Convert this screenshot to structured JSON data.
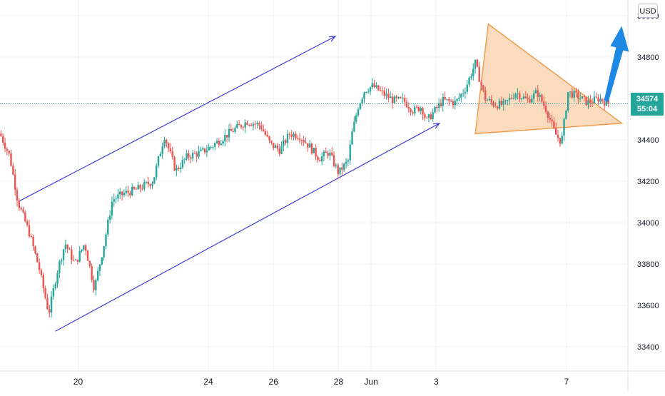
{
  "header": {
    "currency_label": "USD"
  },
  "current_price": {
    "price": "34574",
    "countdown": "55:04"
  },
  "colors": {
    "up": "#26a69a",
    "down": "#ef5350",
    "channel": "#3f3fd9",
    "triangle_fill": "#f8cfa7",
    "triangle_stroke": "#ef9f4f",
    "arrow": "#1e88e5",
    "price_line": "#26a69a",
    "grid": "#f0f3fa",
    "axis_text": "#131722"
  },
  "chart_data": {
    "type": "candlestick",
    "title": "",
    "xlabel": "",
    "ylabel": "",
    "ylim": [
      33360,
      35000
    ],
    "y_ticks": [
      33400,
      33600,
      33800,
      34000,
      34200,
      34400,
      34600,
      34800,
      35000
    ],
    "y_tick_labels": [
      "33400",
      "33600",
      "33800",
      "34000",
      "34200",
      "34400",
      "34600",
      "34800",
      "35000"
    ],
    "x_ticks": [
      {
        "label": "20",
        "x": 2.4
      },
      {
        "label": "24",
        "x": 6.4
      },
      {
        "label": "26",
        "x": 8.4
      },
      {
        "label": "28",
        "x": 10.4
      },
      {
        "label": "Jun",
        "x": 11.4
      },
      {
        "label": "3",
        "x": 13.4
      },
      {
        "label": "7",
        "x": 17.4
      }
    ],
    "xlim": [
      0,
      19
    ],
    "price_path": [
      [
        0.0,
        34430
      ],
      [
        0.3,
        34320
      ],
      [
        0.55,
        34100
      ],
      [
        0.9,
        33950
      ],
      [
        1.2,
        33780
      ],
      [
        1.5,
        33560
      ],
      [
        1.75,
        33760
      ],
      [
        2.0,
        33900
      ],
      [
        2.3,
        33800
      ],
      [
        2.6,
        33900
      ],
      [
        2.9,
        33680
      ],
      [
        3.2,
        33900
      ],
      [
        3.45,
        34110
      ],
      [
        3.8,
        34140
      ],
      [
        4.2,
        34160
      ],
      [
        4.7,
        34200
      ],
      [
        5.05,
        34420
      ],
      [
        5.4,
        34250
      ],
      [
        5.75,
        34320
      ],
      [
        6.2,
        34340
      ],
      [
        6.6,
        34380
      ],
      [
        7.1,
        34440
      ],
      [
        7.6,
        34490
      ],
      [
        8.0,
        34470
      ],
      [
        8.3,
        34380
      ],
      [
        8.6,
        34350
      ],
      [
        8.9,
        34430
      ],
      [
        9.2,
        34420
      ],
      [
        9.5,
        34370
      ],
      [
        9.8,
        34310
      ],
      [
        10.1,
        34340
      ],
      [
        10.4,
        34240
      ],
      [
        10.7,
        34300
      ],
      [
        10.8,
        34420
      ],
      [
        11.0,
        34560
      ],
      [
        11.2,
        34640
      ],
      [
        11.45,
        34660
      ],
      [
        11.8,
        34620
      ],
      [
        12.1,
        34590
      ],
      [
        12.4,
        34590
      ],
      [
        12.7,
        34540
      ],
      [
        12.95,
        34560
      ],
      [
        13.1,
        34490
      ],
      [
        13.35,
        34540
      ],
      [
        13.6,
        34590
      ],
      [
        14.0,
        34580
      ],
      [
        14.3,
        34650
      ],
      [
        14.6,
        34770
      ],
      [
        14.9,
        34600
      ],
      [
        15.2,
        34570
      ],
      [
        15.5,
        34570
      ],
      [
        15.85,
        34630
      ],
      [
        16.2,
        34590
      ],
      [
        16.5,
        34630
      ],
      [
        16.8,
        34540
      ],
      [
        17.05,
        34430
      ],
      [
        17.25,
        34390
      ],
      [
        17.45,
        34630
      ],
      [
        17.75,
        34610
      ],
      [
        18.05,
        34580
      ],
      [
        18.4,
        34600
      ],
      [
        18.7,
        34574
      ]
    ],
    "annotations": {
      "channel_lower": [
        [
          1.7,
          33475
        ],
        [
          13.5,
          34480
        ]
      ],
      "channel_upper": [
        [
          0.6,
          34105
        ],
        [
          10.3,
          34900
        ]
      ],
      "triangle": [
        [
          15.0,
          34960
        ],
        [
          14.6,
          34430
        ],
        [
          19.1,
          34480
        ]
      ],
      "forecast_arrow": [
        [
          18.6,
          34590
        ],
        [
          19.1,
          34950
        ]
      ]
    }
  }
}
